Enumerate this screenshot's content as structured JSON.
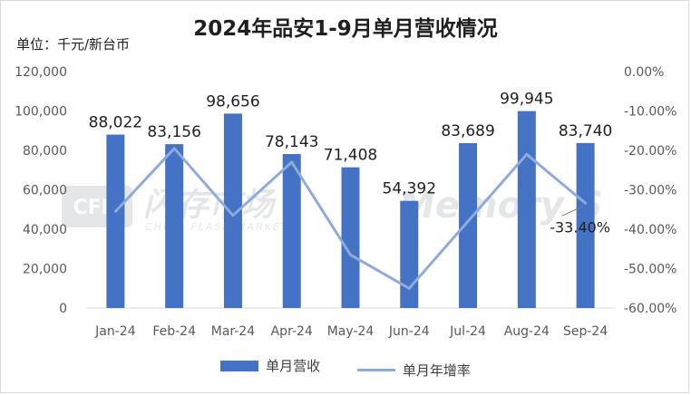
{
  "chart_data": {
    "type": "bar",
    "title": "2024年品安1-9月单月营收情况",
    "unit_label": "单位：千元/新台币",
    "categories": [
      "Jan-24",
      "Feb-24",
      "Mar-24",
      "Apr-24",
      "May-24",
      "Jun-24",
      "Jul-24",
      "Aug-24",
      "Sep-24"
    ],
    "series": [
      {
        "name": "单月营收",
        "type": "bar",
        "axis": "left",
        "color": "#4472c4",
        "values": [
          88022,
          83156,
          98656,
          78143,
          71408,
          54392,
          83689,
          99945,
          83740
        ],
        "labels": [
          "88,022",
          "83,156",
          "98,656",
          "78,143",
          "71,408",
          "54,392",
          "83,689",
          "99,945",
          "83,740"
        ]
      },
      {
        "name": "单月年增率",
        "type": "line",
        "axis": "right",
        "color": "#8faadc",
        "values": [
          -35.5,
          -19.5,
          -36.5,
          -23.0,
          -46.5,
          -55.0,
          -38.0,
          -21.0,
          -33.4
        ]
      }
    ],
    "left_axis": {
      "min": 0,
      "max": 120000,
      "ticks": [
        "0",
        "20,000",
        "40,000",
        "60,000",
        "80,000",
        "100,000",
        "120,000"
      ]
    },
    "right_axis": {
      "min": -60,
      "max": 0,
      "ticks": [
        "-60.00%",
        "-50.00%",
        "-40.00%",
        "-30.00%",
        "-20.00%",
        "-10.00%",
        "0.00%"
      ]
    },
    "annotation": {
      "text": "-33.40%",
      "series": "单月年增率",
      "category": "Sep-24"
    },
    "legend": {
      "placement": "bottom",
      "items": [
        "单月营收",
        "单月年增率"
      ]
    },
    "grid": false
  },
  "watermark": {
    "logo": "CFM",
    "cn": "闪存市场",
    "en": "CHINA FLASH MARKET",
    "brand": "Memory S"
  }
}
